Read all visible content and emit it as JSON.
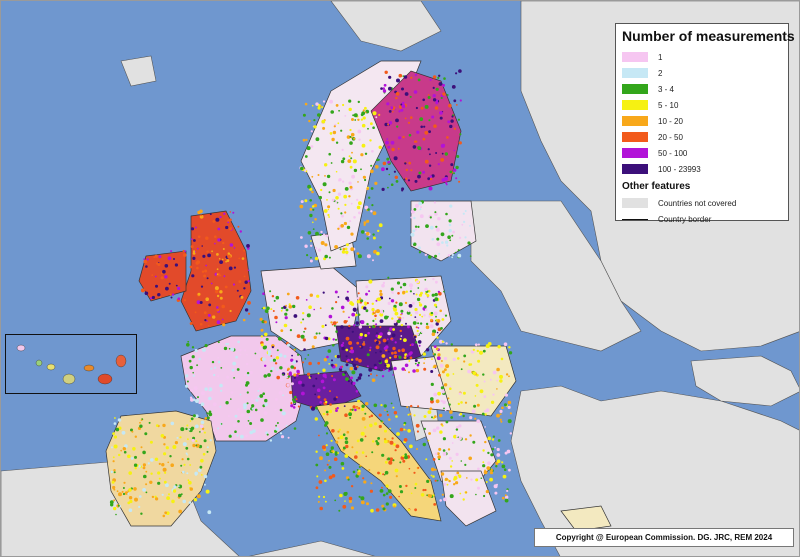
{
  "legend": {
    "title": "Number of measurements",
    "classes": [
      {
        "label": "1",
        "color": "#f6c6f1"
      },
      {
        "label": "2",
        "color": "#c6e8f5"
      },
      {
        "label": "3 - 4",
        "color": "#33a61b"
      },
      {
        "label": "5 - 10",
        "color": "#f6f112"
      },
      {
        "label": "10 - 20",
        "color": "#f8a81a"
      },
      {
        "label": "20 - 50",
        "color": "#f25a1b"
      },
      {
        "label": "50 - 100",
        "color": "#b213d8"
      },
      {
        "label": "100 - 23993",
        "color": "#3c0f7a"
      }
    ],
    "other_title": "Other features",
    "not_covered": {
      "label": "Countries not covered",
      "color": "#e1e1e1"
    },
    "border": {
      "label": "Country border",
      "color": "#111111"
    }
  },
  "copyright": "Copyright @ European Commission. DG. JRC, REM 2024",
  "colors": {
    "sea": "#6f97cf",
    "land_not_covered": "#e1e1e1"
  }
}
